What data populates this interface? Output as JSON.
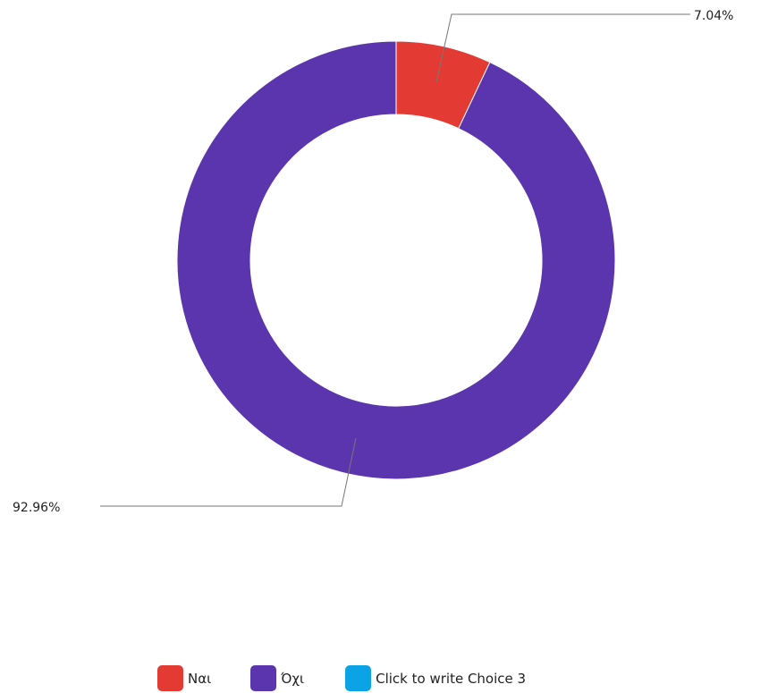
{
  "chart_data": {
    "type": "pie",
    "variant": "donut",
    "series": [
      {
        "name": "Ναι",
        "value": 7.04,
        "label": "7.04%",
        "color": "#e33a33"
      },
      {
        "name": "Όχι",
        "value": 92.96,
        "label": "92.96%",
        "color": "#5b35ad"
      },
      {
        "name": "Click to write Choice 3",
        "value": 0,
        "color": "#0ba3e6"
      }
    ],
    "legend_position": "bottom"
  }
}
